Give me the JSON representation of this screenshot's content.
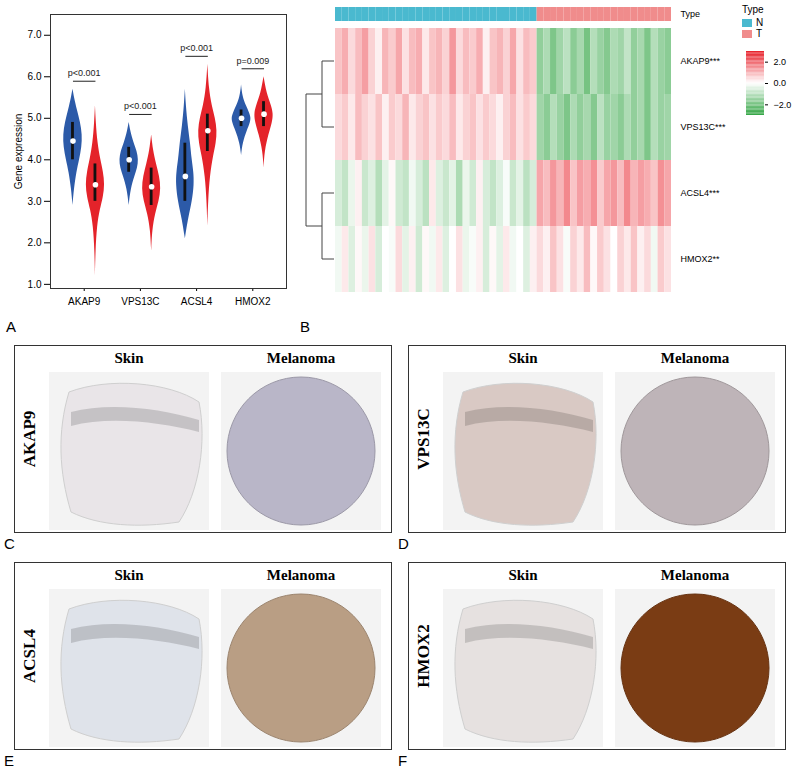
{
  "chart_data": [
    {
      "type": "violin",
      "panel": "A",
      "y_label": "Gene expression",
      "categories": [
        "AKAP9",
        "VPS13C",
        "ACSL4",
        "HMOX2"
      ],
      "ylim": [
        0.9,
        7.5
      ],
      "yticks": [
        1,
        2,
        3,
        4,
        5,
        6,
        7
      ],
      "annotations": [
        "p<0.001",
        "p<0.001",
        "p<0.001",
        "p=0.009"
      ],
      "series": [
        {
          "color": "#2c5aa8",
          "violins": [
            {
              "y": [
                2.9,
                3.3,
                3.7,
                4.0,
                4.3,
                4.6,
                4.9,
                5.2,
                5.5,
                5.7
              ],
              "density": [
                0,
                0.15,
                0.4,
                0.7,
                0.95,
                1.0,
                0.8,
                0.45,
                0.15,
                0
              ],
              "box": [
                4.0,
                4.9
              ],
              "median": 4.45
            },
            {
              "y": [
                2.9,
                3.3,
                3.6,
                3.8,
                4.0,
                4.2,
                4.4,
                4.7,
                4.9
              ],
              "density": [
                0,
                0.2,
                0.6,
                0.9,
                1.0,
                0.85,
                0.5,
                0.15,
                0
              ],
              "box": [
                3.7,
                4.3
              ],
              "median": 4.0
            },
            {
              "y": [
                2.1,
                2.6,
                3.0,
                3.4,
                3.7,
                4.0,
                4.4,
                4.8,
                5.3,
                5.7
              ],
              "density": [
                0,
                0.35,
                0.75,
                0.95,
                0.9,
                0.7,
                0.55,
                0.3,
                0.1,
                0
              ],
              "box": [
                3.0,
                4.4
              ],
              "median": 3.6
            },
            {
              "y": [
                4.1,
                4.4,
                4.7,
                4.9,
                5.0,
                5.1,
                5.3,
                5.5,
                5.8
              ],
              "density": [
                0,
                0.15,
                0.6,
                0.95,
                1.0,
                0.9,
                0.5,
                0.15,
                0
              ],
              "box": [
                4.8,
                5.2
              ],
              "median": 5.0
            }
          ]
        },
        {
          "color": "#e4232a",
          "violins": [
            {
              "y": [
                1.2,
                1.8,
                2.4,
                2.8,
                3.1,
                3.4,
                3.7,
                4.0,
                4.4,
                4.9,
                5.3
              ],
              "density": [
                0,
                0.05,
                0.2,
                0.5,
                0.85,
                1.0,
                0.85,
                0.55,
                0.25,
                0.08,
                0
              ],
              "box": [
                3.0,
                3.9
              ],
              "median": 3.4
            },
            {
              "y": [
                1.8,
                2.3,
                2.7,
                3.0,
                3.3,
                3.6,
                3.9,
                4.2,
                4.6
              ],
              "density": [
                0,
                0.1,
                0.4,
                0.8,
                1.0,
                0.85,
                0.5,
                0.2,
                0
              ],
              "box": [
                2.9,
                3.8
              ],
              "median": 3.35
            },
            {
              "y": [
                2.4,
                3.0,
                3.6,
                4.1,
                4.4,
                4.7,
                5.0,
                5.3,
                5.7,
                6.3
              ],
              "density": [
                0,
                0.08,
                0.25,
                0.6,
                0.9,
                1.0,
                0.8,
                0.45,
                0.15,
                0
              ],
              "box": [
                4.2,
                5.1
              ],
              "median": 4.7
            },
            {
              "y": [
                3.8,
                4.2,
                4.6,
                4.9,
                5.1,
                5.3,
                5.6,
                6.0
              ],
              "density": [
                0,
                0.1,
                0.5,
                0.9,
                1.0,
                0.8,
                0.3,
                0
              ],
              "box": [
                4.8,
                5.4
              ],
              "median": 5.1
            }
          ]
        }
      ]
    },
    {
      "type": "heatmap",
      "panel": "B",
      "annotation_label": "Type",
      "legend_title": "Type",
      "groups": [
        {
          "name": "N",
          "color": "#4ab9cf"
        },
        {
          "name": "T",
          "color": "#f08c8c"
        }
      ],
      "types": [
        "N",
        "N",
        "N",
        "N",
        "N",
        "N",
        "N",
        "N",
        "N",
        "N",
        "N",
        "N",
        "N",
        "N",
        "N",
        "N",
        "N",
        "N",
        "N",
        "N",
        "N",
        "N",
        "N",
        "N",
        "N",
        "N",
        "N",
        "N",
        "N",
        "N",
        "T",
        "T",
        "T",
        "T",
        "T",
        "T",
        "T",
        "T",
        "T",
        "T",
        "T",
        "T",
        "T",
        "T",
        "T",
        "T",
        "T",
        "T",
        "T",
        "T"
      ],
      "colors": [
        "#33a544",
        "#ffffff",
        "#e8202a"
      ],
      "color_range": [
        -3,
        3
      ],
      "color_ticks": [
        2,
        0,
        -2
      ],
      "rows": [
        {
          "label": "AKAP9***",
          "values": [
            0.8,
            1.1,
            0.5,
            0.9,
            1.3,
            0.6,
            0.2,
            1.0,
            0.7,
            1.2,
            0.4,
            0.9,
            1.1,
            0.3,
            0.8,
            1.0,
            0.6,
            1.4,
            0.5,
            0.9,
            0.7,
            1.1,
            0.2,
            0.8,
            1.0,
            0.6,
            1.2,
            0.4,
            0.9,
            0.7,
            -1.6,
            -1.2,
            -1.9,
            -1.4,
            -1.0,
            -1.7,
            -1.3,
            -2.0,
            -1.1,
            -1.5,
            -1.8,
            -1.2,
            -1.4,
            -0.9,
            -1.6,
            -1.3,
            -1.9,
            -1.1,
            -1.5,
            -1.7
          ]
        },
        {
          "label": "VPS13C***",
          "values": [
            0.5,
            0.7,
            0.3,
            0.9,
            0.6,
            0.4,
            0.8,
            0.2,
            0.7,
            0.5,
            1.0,
            0.3,
            0.6,
            0.8,
            0.4,
            0.7,
            0.5,
            0.9,
            0.3,
            0.6,
            0.8,
            0.4,
            0.7,
            0.5,
            0.2,
            0.6,
            0.9,
            0.4,
            0.7,
            0.5,
            -1.4,
            -1.7,
            -1.1,
            -1.5,
            -1.9,
            -1.2,
            -1.6,
            -1.3,
            -1.8,
            -1.0,
            -1.5,
            -1.4,
            -1.7,
            -1.2,
            -1.6,
            -1.3,
            -1.9,
            -1.1,
            -1.5,
            -1.4
          ]
        },
        {
          "label": "ACSL4***",
          "values": [
            -0.6,
            -0.9,
            -0.3,
            0.2,
            -0.8,
            -0.5,
            -1.1,
            -0.4,
            0.1,
            -0.7,
            -0.9,
            -0.2,
            -0.6,
            -1.0,
            0.3,
            -0.5,
            -0.8,
            -0.4,
            -1.2,
            -0.3,
            -0.7,
            0.2,
            -0.6,
            -0.9,
            -0.5,
            -0.1,
            -0.8,
            -0.4,
            -1.0,
            -0.6,
            1.2,
            0.9,
            1.4,
            1.0,
            1.6,
            0.8,
            1.3,
            1.1,
            1.5,
            0.7,
            1.2,
            1.4,
            0.9,
            1.6,
            1.0,
            1.3,
            1.1,
            0.8,
            1.5,
            1.2
          ]
        },
        {
          "label": "HMOX2**",
          "values": [
            -0.2,
            0.3,
            -0.5,
            0.1,
            -0.3,
            0.4,
            -0.6,
            0.0,
            -0.1,
            0.5,
            -0.4,
            0.2,
            -0.7,
            0.1,
            -0.2,
            0.3,
            -0.5,
            0.0,
            0.4,
            -0.3,
            -0.1,
            0.2,
            -0.6,
            0.1,
            -0.4,
            0.3,
            -0.2,
            0.0,
            -0.5,
            0.2,
            0.5,
            0.2,
            0.8,
            0.4,
            -0.1,
            0.6,
            0.3,
            0.9,
            0.1,
            0.7,
            0.4,
            0.0,
            0.6,
            0.3,
            0.8,
            0.2,
            0.5,
            -0.2,
            0.7,
            0.4
          ]
        }
      ]
    }
  ],
  "ihc_panels": [
    {
      "panel": "C",
      "gene": "AKAP9",
      "columns": [
        "Skin",
        "Melanoma"
      ],
      "colors": [
        "#e9e5e8",
        "#b9b6c8"
      ]
    },
    {
      "panel": "D",
      "gene": "VPS13C",
      "columns": [
        "Skin",
        "Melanoma"
      ],
      "colors": [
        "#d9c9c4",
        "#beb4b8"
      ]
    },
    {
      "panel": "E",
      "gene": "ACSL4",
      "columns": [
        "Skin",
        "Melanoma"
      ],
      "colors": [
        "#dfe3ea",
        "#b99e84"
      ]
    },
    {
      "panel": "F",
      "gene": "HMOX2",
      "columns": [
        "Skin",
        "Melanoma"
      ],
      "colors": [
        "#e6e1e0",
        "#7a3c14"
      ]
    }
  ]
}
